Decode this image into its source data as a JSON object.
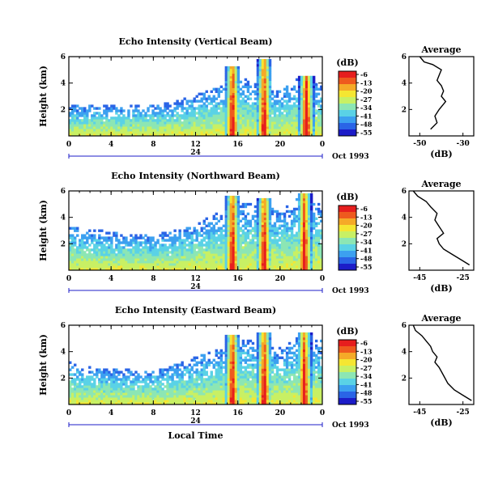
{
  "colors": {
    "colormap": [
      "#1c1cc8",
      "#2a64e6",
      "#3ca0f0",
      "#5ad2e6",
      "#8ce6b4",
      "#c8f064",
      "#f5e632",
      "#f5aa28",
      "#ee5a1e",
      "#e61e1e"
    ]
  },
  "chart_data": [
    {
      "type": "heatmap",
      "title": "Echo Intensity (Vertical Beam)",
      "ylabel": "Height (km)",
      "xlabel": "",
      "x_ticks": [
        "0",
        "4",
        "8",
        "12",
        "16",
        "20",
        "0"
      ],
      "y_ticks": [
        "2",
        "4",
        "6"
      ],
      "xlim": [
        0,
        24
      ],
      "ylim": [
        0,
        6
      ],
      "date_bar": {
        "label": "24",
        "date": "Oct 1993"
      },
      "colorbar": {
        "unit": "(dB)",
        "ticks": [
          "-6",
          "-13",
          "-20",
          "-27",
          "-34",
          "-41",
          "-48",
          "-55"
        ]
      },
      "peaks": [
        {
          "time": 15.5,
          "top_km": 5.3
        },
        {
          "time": 18.5,
          "top_km": 5.8
        },
        {
          "time": 22.5,
          "top_km": 4.6
        }
      ],
      "cloud_top_km": [
        [
          0,
          2.3
        ],
        [
          4,
          2.3
        ],
        [
          8,
          2.4
        ],
        [
          10,
          2.6
        ],
        [
          12,
          3.1
        ],
        [
          14,
          3.8
        ],
        [
          16,
          4.5
        ],
        [
          18,
          4.0
        ],
        [
          20,
          3.4
        ],
        [
          22,
          4.6
        ],
        [
          24,
          3.8
        ]
      ],
      "profile": {
        "title": "Average",
        "xlabel": "(dB)",
        "x_ticks": [
          "-50",
          "-30"
        ],
        "xlim": [
          -55,
          -25
        ],
        "y_ticks": [
          "2",
          "4",
          "6"
        ],
        "ylim": [
          0,
          6
        ],
        "x": [
          -50,
          -48,
          -44,
          -40,
          -41,
          -42,
          -40,
          -39,
          -40,
          -38,
          -41,
          -43,
          -42,
          -45
        ],
        "y": [
          6.0,
          5.6,
          5.4,
          5.0,
          4.6,
          4.2,
          3.8,
          3.4,
          3.0,
          2.6,
          2.0,
          1.5,
          1.0,
          0.5
        ]
      }
    },
    {
      "type": "heatmap",
      "title": "Echo Intensity (Northward Beam)",
      "ylabel": "Height (km)",
      "xlabel": "",
      "x_ticks": [
        "0",
        "4",
        "8",
        "12",
        "16",
        "20",
        "0"
      ],
      "y_ticks": [
        "2",
        "4",
        "6"
      ],
      "xlim": [
        0,
        24
      ],
      "ylim": [
        0,
        6
      ],
      "date_bar": {
        "label": "24",
        "date": "Oct 1993"
      },
      "colorbar": {
        "unit": "(dB)",
        "ticks": [
          "-6",
          "-13",
          "-20",
          "-27",
          "-34",
          "-41",
          "-48",
          "-55"
        ]
      },
      "peaks": [
        {
          "time": 15.5,
          "top_km": 5.6
        },
        {
          "time": 18.5,
          "top_km": 5.5
        },
        {
          "time": 22.3,
          "top_km": 5.8
        }
      ],
      "cloud_top_km": [
        [
          0,
          3.4
        ],
        [
          4,
          2.9
        ],
        [
          8,
          2.7
        ],
        [
          10,
          3.0
        ],
        [
          12,
          3.5
        ],
        [
          14,
          4.3
        ],
        [
          16,
          5.2
        ],
        [
          18,
          5.0
        ],
        [
          20,
          4.5
        ],
        [
          22,
          5.6
        ],
        [
          24,
          5.0
        ]
      ],
      "profile": {
        "title": "Average",
        "xlabel": "(dB)",
        "x_ticks": [
          "-45",
          "-25"
        ],
        "xlim": [
          -50,
          -20
        ],
        "y_ticks": [
          "2",
          "4",
          "6"
        ],
        "ylim": [
          0,
          6
        ],
        "x": [
          -48,
          -46,
          -42,
          -40,
          -37,
          -38,
          -36,
          -34,
          -37,
          -36,
          -34,
          -30,
          -26,
          -22
        ],
        "y": [
          6.0,
          5.6,
          5.2,
          4.8,
          4.3,
          3.8,
          3.3,
          2.8,
          2.4,
          2.0,
          1.6,
          1.2,
          0.8,
          0.4
        ]
      }
    },
    {
      "type": "heatmap",
      "title": "Echo Intensity (Eastward Beam)",
      "ylabel": "Height (km)",
      "xlabel": "Local Time",
      "x_ticks": [
        "0",
        "4",
        "8",
        "12",
        "16",
        "20",
        "0"
      ],
      "y_ticks": [
        "2",
        "4",
        "6"
      ],
      "xlim": [
        0,
        24
      ],
      "ylim": [
        0,
        6
      ],
      "date_bar": {
        "label": "24",
        "date": "Oct 1993"
      },
      "colorbar": {
        "unit": "(dB)",
        "ticks": [
          "-6",
          "-13",
          "-20",
          "-27",
          "-34",
          "-41",
          "-48",
          "-55"
        ]
      },
      "peaks": [
        {
          "time": 15.5,
          "top_km": 5.2
        },
        {
          "time": 18.5,
          "top_km": 5.5
        },
        {
          "time": 22.3,
          "top_km": 5.4
        }
      ],
      "cloud_top_km": [
        [
          0,
          3.2
        ],
        [
          4,
          2.7
        ],
        [
          8,
          2.6
        ],
        [
          10,
          3.0
        ],
        [
          12,
          3.6
        ],
        [
          14,
          4.2
        ],
        [
          16,
          5.0
        ],
        [
          18,
          4.8
        ],
        [
          20,
          4.3
        ],
        [
          22,
          5.2
        ],
        [
          24,
          4.8
        ]
      ],
      "profile": {
        "title": "Average",
        "xlabel": "(dB)",
        "x_ticks": [
          "-45",
          "-25"
        ],
        "xlim": [
          -50,
          -20
        ],
        "y_ticks": [
          "2",
          "4",
          "6"
        ],
        "ylim": [
          0,
          6
        ],
        "x": [
          -48,
          -47,
          -44,
          -42,
          -40,
          -39,
          -37,
          -38,
          -36,
          -34,
          -32,
          -29,
          -25,
          -21
        ],
        "y": [
          6.0,
          5.6,
          5.2,
          4.8,
          4.4,
          4.0,
          3.6,
          3.2,
          2.8,
          2.2,
          1.6,
          1.1,
          0.7,
          0.3
        ]
      }
    }
  ]
}
